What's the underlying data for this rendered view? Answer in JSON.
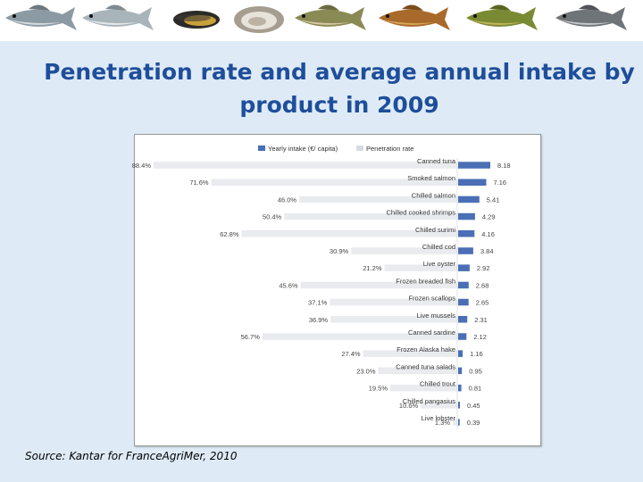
{
  "banner": {
    "icons": [
      "bream-icon",
      "sea-bass-icon",
      "mussel-icon",
      "oyster-icon",
      "trout-icon",
      "carp-icon",
      "tench-icon",
      "seabass-grey-icon"
    ]
  },
  "page": {
    "title_line1": "Penetration rate and average annual intake by",
    "title_line2": "product in 2009",
    "source": "Source: Kantar for FranceAgriMer, 2010"
  },
  "colors": {
    "background": "#deebf7",
    "title": "#1f4e9a",
    "intake_bar": "#4a6fb5",
    "penetration_bar": "#e9ebef"
  },
  "chart_data": {
    "type": "bar",
    "title": "",
    "legend": [
      "Yearly intake (€/ capita)",
      "Penetration rate"
    ],
    "legend_position": "top",
    "categories": [
      "Canned tuna",
      "Smoked salmon",
      "Chilled salmon",
      "Chilled cooked shrimps",
      "Chilled surimi",
      "Chilled cod",
      "Live oyster",
      "Frozen breaded fish",
      "Frozen scallops",
      "Live mussels",
      "Canned sardine",
      "Frozen Alaska hake",
      "Canned tuna salads",
      "Chilled trout",
      "Chilled pangasius",
      "Live lobster"
    ],
    "series": [
      {
        "name": "Yearly intake (€/ capita)",
        "values": [
          8.18,
          7.16,
          5.41,
          4.29,
          4.16,
          3.84,
          2.92,
          2.68,
          2.65,
          2.31,
          2.12,
          1.16,
          0.95,
          0.81,
          0.45,
          0.39
        ],
        "labels": [
          "8.18",
          "7.16",
          "5.41",
          "4.29",
          "4.16",
          "3.84",
          "2.92",
          "2.68",
          "2.65",
          "2.31",
          "2.12",
          "1.16",
          "0.95",
          "0.81",
          "0.45",
          "0.39"
        ],
        "xlim": [
          0,
          8.18
        ]
      },
      {
        "name": "Penetration rate",
        "values": [
          88.4,
          71.6,
          46.0,
          50.4,
          62.8,
          30.9,
          21.2,
          45.6,
          37.1,
          36.9,
          56.7,
          27.4,
          23.0,
          19.5,
          10.6,
          1.3
        ],
        "labels": [
          "88.4%",
          "71.6%",
          "46.0%",
          "50.4%",
          "62.8%",
          "30.9%",
          "21.2%",
          "45.6%",
          "37.1%",
          "36.9%",
          "56.7%",
          "27.4%",
          "23.0%",
          "19.5%",
          "10.6%",
          "1.3%"
        ],
        "xlim": [
          0,
          88.4
        ]
      }
    ]
  }
}
